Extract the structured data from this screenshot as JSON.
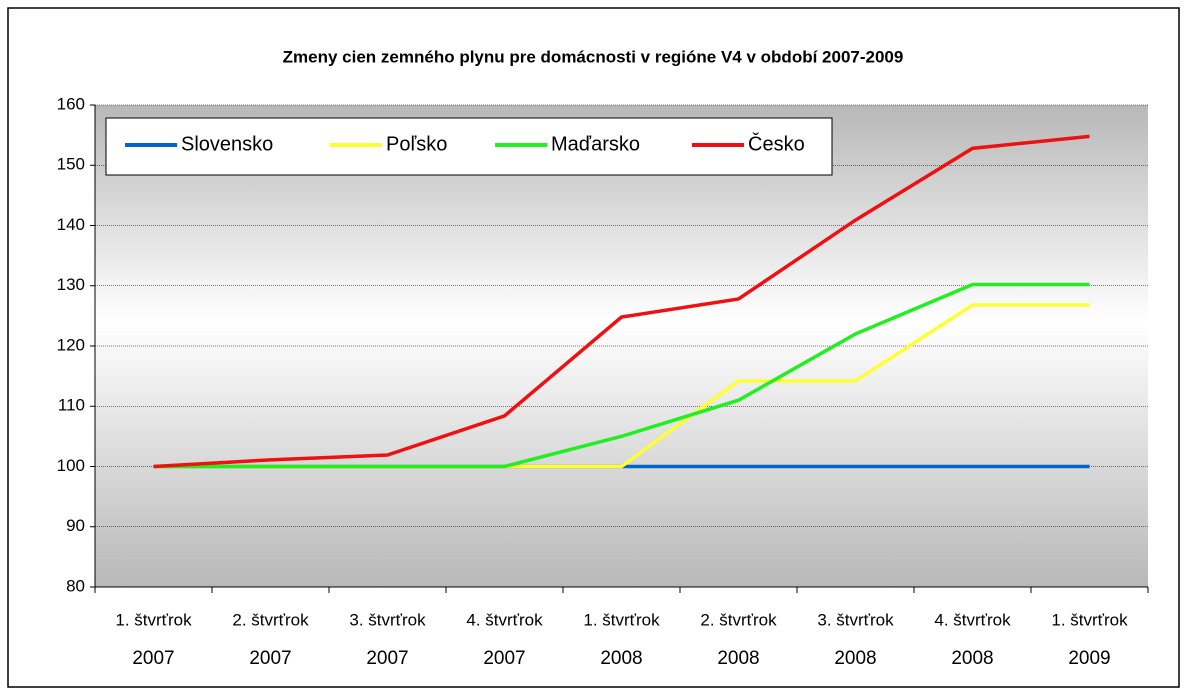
{
  "chart_data": {
    "type": "line",
    "title": "Zmeny cien zemného plynu pre domácnosti v regióne V4 v období 2007-2009",
    "categories": [
      [
        "1. štvrťrok",
        "2007"
      ],
      [
        "2. štvrťrok",
        "2007"
      ],
      [
        "3. štvrťrok",
        "2007"
      ],
      [
        "4. štvrťrok",
        "2007"
      ],
      [
        "1. štvrťrok",
        "2008"
      ],
      [
        "2. štvrťrok",
        "2008"
      ],
      [
        "3. štvrťrok",
        "2008"
      ],
      [
        "4. štvrťrok",
        "2008"
      ],
      [
        "1. štvrťrok",
        "2009"
      ]
    ],
    "series": [
      {
        "name": "Slovensko",
        "color": "#0066cc",
        "values": [
          100,
          100,
          100,
          100,
          100,
          100,
          100,
          100,
          100
        ]
      },
      {
        "name": "Poľsko",
        "color": "#ffff33",
        "values": [
          100,
          100,
          100,
          100,
          100,
          114.2,
          114.2,
          126.8,
          126.8
        ]
      },
      {
        "name": "Maďarsko",
        "color": "#22ee22",
        "values": [
          100,
          100,
          100,
          100,
          105,
          111,
          122,
          130.2,
          130.2
        ]
      },
      {
        "name": "Česko",
        "color": "#ee1111",
        "values": [
          100,
          101.1,
          101.9,
          108.4,
          124.8,
          127.8,
          140.9,
          152.8,
          154.8
        ]
      }
    ],
    "ylim": [
      80,
      160
    ],
    "yticks": [
      80,
      90,
      100,
      110,
      120,
      130,
      140,
      150,
      160
    ],
    "grid": true,
    "legend": "top-left"
  }
}
